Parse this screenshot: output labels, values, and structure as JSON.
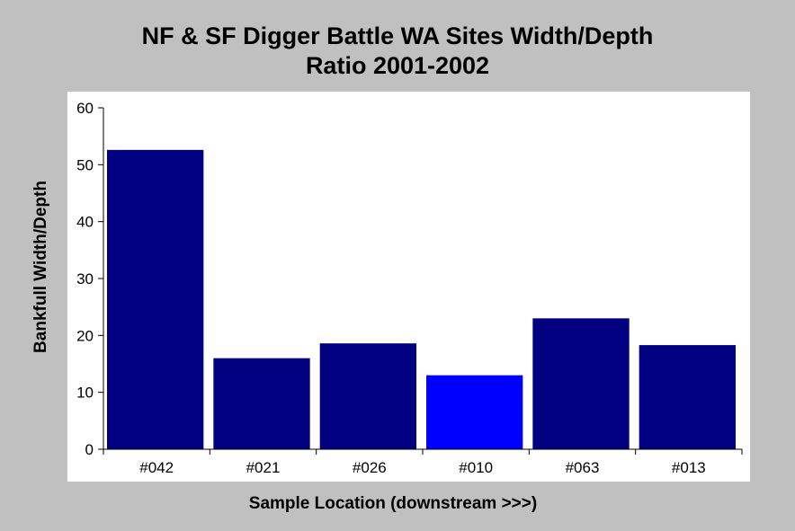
{
  "chart_data": {
    "type": "bar",
    "title_lines": [
      "NF & SF Digger Battle WA Sites Width/Depth",
      "Ratio 2001-2002"
    ],
    "xlabel": "Sample Location (downstream >>>)",
    "ylabel": "Bankfull Width/Depth",
    "categories": [
      "#042",
      "#021",
      "#026",
      "#010",
      "#063",
      "#013"
    ],
    "values": [
      52.6,
      16.0,
      18.6,
      13.0,
      23.0,
      18.3
    ],
    "ylim": [
      0,
      60
    ],
    "yticks": [
      0,
      10,
      20,
      30,
      40,
      50,
      60
    ],
    "grid": false,
    "colors": {
      "bar": "#000080",
      "highlight_bar": "#0000ff",
      "plot_background": "#ffffff",
      "page_background": "#c0c0c0"
    },
    "highlighted_category": "#010"
  }
}
